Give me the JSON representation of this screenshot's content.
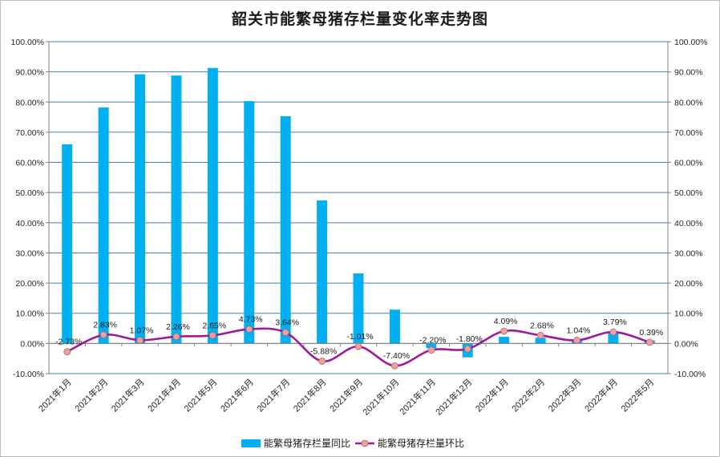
{
  "chart_data": {
    "type": "bar",
    "title": "韶关市能繁母猪存栏量变化率走势图",
    "categories": [
      "2021年1月",
      "2021年2月",
      "2021年3月",
      "2021年4月",
      "2021年5月",
      "2021年6月",
      "2021年7月",
      "2021年8月",
      "2021年9月",
      "2021年10月",
      "2021年11月",
      "2021年12月",
      "2022年1月",
      "2022年2月",
      "2022年3月",
      "2022年4月",
      "2022年5月"
    ],
    "series": [
      {
        "name": "能繁母猪存栏量同比",
        "type": "bar",
        "color": "#00b0f0",
        "values": [
          66.0,
          78.2,
          89.2,
          88.8,
          91.3,
          80.3,
          75.3,
          47.4,
          23.2,
          11.2,
          -1.5,
          -4.6,
          2.2,
          1.9,
          1.3,
          3.6,
          1.0
        ]
      },
      {
        "name": "能繁母猪存栏量环比",
        "type": "line",
        "smooth": true,
        "color": "#a0199a",
        "marker_color": "#e8a2a2",
        "values": [
          -2.73,
          2.83,
          1.07,
          2.26,
          2.65,
          4.73,
          3.64,
          -5.88,
          -1.01,
          -7.4,
          -2.2,
          -1.8,
          4.09,
          2.68,
          1.04,
          3.79,
          0.39
        ],
        "labels": [
          "-2.73%",
          "2.83%",
          "1.07%",
          "2.26%",
          "2.65%",
          "4.73%",
          "3.64%",
          "-5.88%",
          "-1.01%",
          "-7.40%",
          "-2.20%",
          "-1.80%",
          "4.09%",
          "2.68%",
          "1.04%",
          "3.79%",
          "0.39%"
        ]
      }
    ],
    "y_ticks": [
      "100.00%",
      "90.00%",
      "80.00%",
      "70.00%",
      "60.00%",
      "50.00%",
      "40.00%",
      "30.00%",
      "20.00%",
      "10.00%",
      "0.00%",
      "-10.00%"
    ],
    "y_tick_values": [
      100,
      90,
      80,
      70,
      60,
      50,
      40,
      30,
      20,
      10,
      0,
      -10
    ],
    "ylim": [
      -10,
      100
    ],
    "y2lim": [
      -10,
      100
    ],
    "grid": true,
    "grid_color": "#4a7ebb",
    "legend": "bottom"
  }
}
